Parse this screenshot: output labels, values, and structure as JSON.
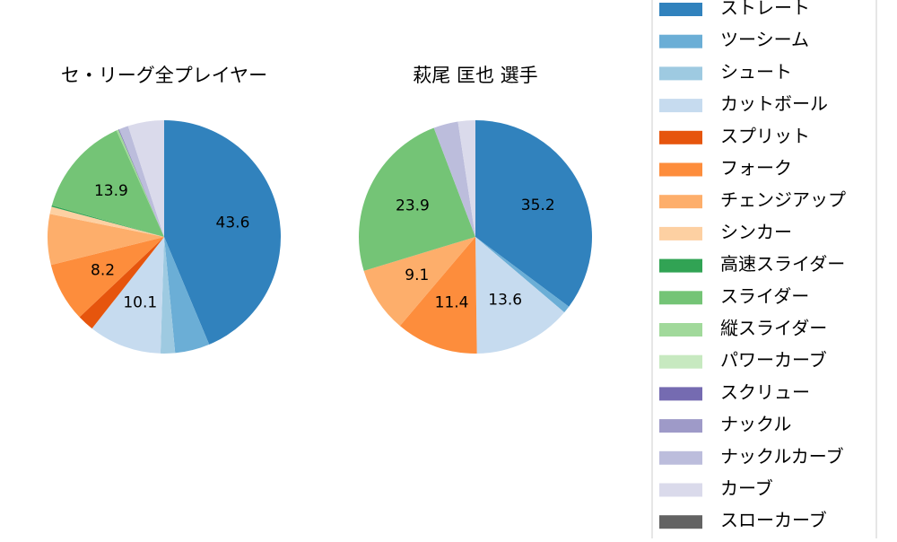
{
  "chart_data": [
    {
      "type": "pie",
      "title": "セ・リーグ全プレイヤー",
      "categories": [
        "ストレート",
        "ツーシーム",
        "シュート",
        "カットボール",
        "スプリット",
        "フォーク",
        "チェンジアップ",
        "シンカー",
        "高速スライダー",
        "スライダー",
        "縦スライダー",
        "パワーカーブ",
        "スクリュー",
        "ナックル",
        "ナックルカーブ",
        "カーブ",
        "スローカーブ"
      ],
      "values": [
        43.6,
        4.8,
        2.0,
        10.1,
        2.3,
        8.2,
        7.0,
        1.0,
        0.2,
        13.9,
        0.3,
        0,
        0.1,
        0,
        1.3,
        5.0,
        0
      ],
      "value_labels": [
        "43.6",
        null,
        null,
        "10.1",
        null,
        "8.2",
        null,
        null,
        null,
        "13.9",
        null,
        null,
        null,
        null,
        null,
        null,
        null
      ],
      "colors": [
        "#3182bd",
        "#6baed6",
        "#9ecae1",
        "#c6dbef",
        "#e6550d",
        "#fd8d3c",
        "#fdae6b",
        "#fdd0a2",
        "#31a354",
        "#74c476",
        "#a1d99b",
        "#c7e9c0",
        "#756bb1",
        "#9e9ac8",
        "#bcbddc",
        "#dadaeb",
        "#636363"
      ]
    },
    {
      "type": "pie",
      "title": "萩尾 匡也  選手",
      "categories": [
        "ストレート",
        "ツーシーム",
        "カットボール",
        "フォーク",
        "チェンジアップ",
        "スライダー",
        "ナックルカーブ",
        "カーブ"
      ],
      "values": [
        35.2,
        1.0,
        13.6,
        11.4,
        9.1,
        23.9,
        3.4,
        2.4
      ],
      "value_labels": [
        "35.2",
        null,
        "13.6",
        "11.4",
        "9.1",
        "23.9",
        null,
        null
      ],
      "colors": [
        "#3182bd",
        "#6baed6",
        "#c6dbef",
        "#fd8d3c",
        "#fdae6b",
        "#74c476",
        "#bcbddc",
        "#dadaeb"
      ]
    }
  ]
}
